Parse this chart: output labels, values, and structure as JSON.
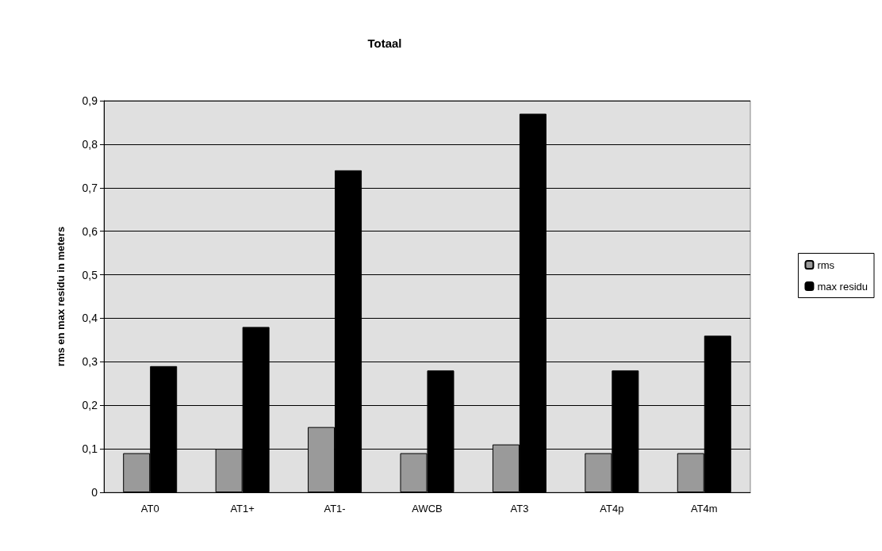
{
  "chart_data": {
    "type": "bar",
    "title": "Totaal",
    "ylabel": "rms en max residu in meters",
    "categories": [
      "AT0",
      "AT1+",
      "AT1-",
      "AWCB",
      "AT3",
      "AT4p",
      "AT4m"
    ],
    "series": [
      {
        "name": "rms",
        "color": "#9a9a9a",
        "values": [
          0.09,
          0.1,
          0.15,
          0.09,
          0.11,
          0.09,
          0.09
        ]
      },
      {
        "name": "max residu",
        "color": "#000000",
        "values": [
          0.29,
          0.38,
          0.74,
          0.28,
          0.87,
          0.28,
          0.36
        ]
      }
    ],
    "ylim": [
      0,
      0.9
    ],
    "yticks": [
      {
        "value": 0,
        "label": "0"
      },
      {
        "value": 0.1,
        "label": "0,1"
      },
      {
        "value": 0.2,
        "label": "0,2"
      },
      {
        "value": 0.3,
        "label": "0,3"
      },
      {
        "value": 0.4,
        "label": "0,4"
      },
      {
        "value": 0.5,
        "label": "0,5"
      },
      {
        "value": 0.6,
        "label": "0,6"
      },
      {
        "value": 0.7,
        "label": "0,7"
      },
      {
        "value": 0.8,
        "label": "0,8"
      },
      {
        "value": 0.9,
        "label": "0,9"
      }
    ],
    "grid": "y",
    "legend": "right"
  }
}
